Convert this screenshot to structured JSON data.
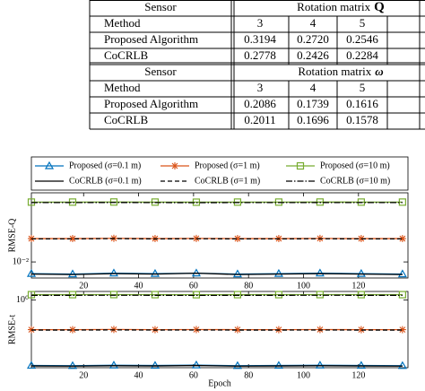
{
  "table": {
    "blocks": [
      {
        "header": [
          "Sensor",
          "Rotation matrix"
        ],
        "symbol": "Q",
        "subheader": [
          "Method",
          "3",
          "4",
          "5"
        ],
        "rows": [
          [
            "Proposed Algorithm",
            "0.3194",
            "0.2720",
            "0.2546"
          ],
          [
            "CoCRLB",
            "0.2778",
            "0.2426",
            "0.2284"
          ]
        ]
      },
      {
        "header": [
          "Sensor",
          "Rotation matrix"
        ],
        "symbol": "ω",
        "subheader": [
          "Method",
          "3",
          "4",
          "5"
        ],
        "rows": [
          [
            "Proposed Algorithm",
            "0.2086",
            "0.1739",
            "0.1616"
          ],
          [
            "CoCRLB",
            "0.2011",
            "0.1696",
            "0.1578"
          ]
        ]
      }
    ]
  },
  "chart_data": [
    {
      "type": "line",
      "ylabel": "RMSE-Q",
      "log_y": true,
      "x": [
        1,
        16,
        31,
        46,
        61,
        76,
        91,
        106,
        121,
        136
      ],
      "xlim": [
        1,
        138
      ],
      "xticks": [
        20,
        40,
        60,
        80,
        100,
        120
      ],
      "ylim": [
        0.006,
        0.09
      ],
      "yticks": [
        {
          "value": 0.01,
          "label": "10⁻²"
        }
      ],
      "series": [
        {
          "name": "Proposed (σ=0.1 m)",
          "color": "#0072bd",
          "marker": "triangle",
          "dash": "solid",
          "values": [
            0.0069,
            0.0068,
            0.007,
            0.0069,
            0.007,
            0.0068,
            0.0069,
            0.007,
            0.0069,
            0.0068
          ]
        },
        {
          "name": "Proposed (σ=1 m)",
          "color": "#d95319",
          "marker": "star",
          "dash": "solid",
          "values": [
            0.021,
            0.021,
            0.0212,
            0.021,
            0.0211,
            0.021,
            0.021,
            0.0211,
            0.021,
            0.021
          ]
        },
        {
          "name": "Proposed (σ=10 m)",
          "color": "#77ac30",
          "marker": "square",
          "dash": "solid",
          "values": [
            0.067,
            0.067,
            0.0672,
            0.067,
            0.0668,
            0.067,
            0.067,
            0.0671,
            0.067,
            0.067
          ]
        },
        {
          "name": "CoCRLB (σ=0.1 m)",
          "color": "#000000",
          "marker": "none",
          "dash": "solid",
          "values": [
            0.0068,
            0.0067,
            0.0069,
            0.0068,
            0.007,
            0.0067,
            0.0068,
            0.0069,
            0.0068,
            0.0067
          ]
        },
        {
          "name": "CoCRLB (σ=1 m)",
          "color": "#000000",
          "marker": "none",
          "dash": "dashed",
          "values": [
            0.0208,
            0.0208,
            0.021,
            0.0208,
            0.0209,
            0.0208,
            0.0208,
            0.0209,
            0.0208,
            0.0208
          ]
        },
        {
          "name": "CoCRLB (σ=10 m)",
          "color": "#000000",
          "marker": "none",
          "dash": "dashdot",
          "values": [
            0.066,
            0.066,
            0.0662,
            0.066,
            0.0658,
            0.066,
            0.066,
            0.0661,
            0.066,
            0.066
          ]
        }
      ]
    },
    {
      "type": "line",
      "ylabel": "RMSE-t",
      "xlabel": "Epoch",
      "log_y": true,
      "x": [
        1,
        16,
        31,
        46,
        61,
        76,
        91,
        106,
        121,
        136
      ],
      "xlim": [
        1,
        138
      ],
      "xticks": [
        20,
        40,
        60,
        80,
        100,
        120
      ],
      "ylim": [
        0.17,
        1.25
      ],
      "yticks": [
        {
          "value": 1,
          "label": "10⁰"
        }
      ],
      "series": [
        {
          "color": "#0072bd",
          "marker": "triangle",
          "dash": "solid",
          "values": [
            0.18,
            0.179,
            0.181,
            0.18,
            0.182,
            0.179,
            0.18,
            0.181,
            0.18,
            0.179
          ]
        },
        {
          "color": "#d95319",
          "marker": "star",
          "dash": "solid",
          "values": [
            0.46,
            0.46,
            0.462,
            0.46,
            0.461,
            0.46,
            0.46,
            0.461,
            0.46,
            0.46
          ]
        },
        {
          "color": "#77ac30",
          "marker": "square",
          "dash": "solid",
          "values": [
            1.15,
            1.15,
            1.152,
            1.15,
            1.148,
            1.15,
            1.15,
            1.151,
            1.15,
            1.15
          ]
        },
        {
          "color": "#000000",
          "marker": "none",
          "dash": "solid",
          "values": [
            0.178,
            0.177,
            0.179,
            0.178,
            0.18,
            0.177,
            0.178,
            0.179,
            0.178,
            0.177
          ]
        },
        {
          "color": "#000000",
          "marker": "none",
          "dash": "dashed",
          "values": [
            0.455,
            0.455,
            0.457,
            0.455,
            0.456,
            0.455,
            0.455,
            0.456,
            0.455,
            0.455
          ]
        },
        {
          "color": "#000000",
          "marker": "none",
          "dash": "dashdot",
          "values": [
            1.13,
            1.13,
            1.132,
            1.13,
            1.128,
            1.13,
            1.13,
            1.131,
            1.13,
            1.13
          ]
        }
      ]
    }
  ]
}
